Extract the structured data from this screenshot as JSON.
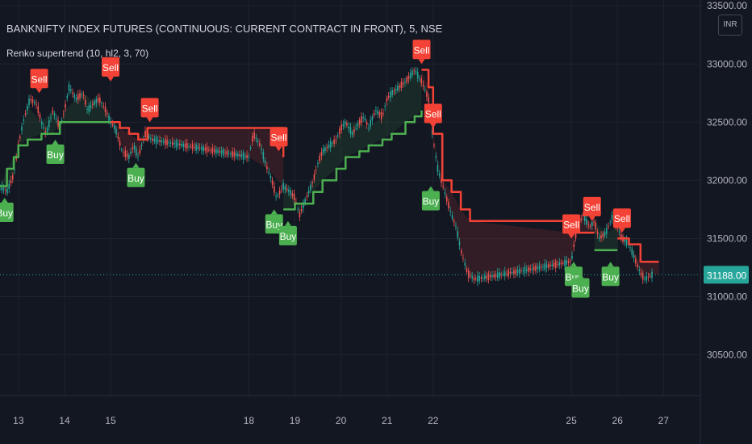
{
  "header": {
    "title": "BANKNIFTY INDEX FUTURES (CONTINUOUS: CURRENT CONTRACT IN FRONT), 5, NSE",
    "indicator": "Renko supertrend (10, hl2, 3, 70)",
    "currency": "INR"
  },
  "colors": {
    "background": "#131722",
    "grid": "#1e222d",
    "buy": "#4caf50",
    "sell": "#f44336",
    "price_line": "#26a69a",
    "candle_up": "#26a69a",
    "candle_down": "#ef5350",
    "text": "#b2b5be"
  },
  "chart_data": {
    "type": "line",
    "title": "BANKNIFTY INDEX FUTURES (CONTINUOUS: CURRENT CONTRACT IN FRONT), 5, NSE",
    "xlabel": "",
    "ylabel": "",
    "ylim": [
      30150,
      33550
    ],
    "xlim": [
      12.6,
      27.8
    ],
    "y_ticks": [
      "30500.00",
      "31000.00",
      "31500.00",
      "32000.00",
      "32500.00",
      "33000.00",
      "33500.00"
    ],
    "x_ticks": [
      "13",
      "14",
      "15",
      "18",
      "19",
      "20",
      "21",
      "22",
      "25",
      "26",
      "27"
    ],
    "x_tick_positions": [
      13,
      14,
      15,
      18,
      19,
      20,
      21,
      22,
      25,
      26,
      27
    ],
    "current_price": "31188.00",
    "grid": true,
    "price": {
      "x": [
        12.6,
        12.75,
        12.9,
        13.0,
        13.1,
        13.25,
        13.4,
        13.5,
        13.6,
        13.75,
        13.9,
        14.0,
        14.1,
        14.25,
        14.4,
        14.5,
        14.6,
        14.75,
        14.9,
        15.0,
        15.1,
        15.25,
        15.4,
        15.5,
        15.6,
        15.75,
        15.9,
        18.0,
        18.1,
        18.25,
        18.4,
        18.5,
        18.6,
        18.75,
        18.9,
        19.0,
        19.1,
        19.25,
        19.4,
        19.5,
        19.6,
        19.75,
        19.9,
        20.0,
        20.1,
        20.25,
        20.4,
        20.5,
        20.6,
        20.75,
        20.9,
        21.0,
        21.1,
        21.25,
        21.4,
        21.5,
        21.6,
        21.75,
        21.9,
        22.0,
        22.1,
        22.25,
        22.4,
        22.5,
        22.6,
        22.75,
        22.9,
        25.0,
        25.1,
        25.25,
        25.4,
        25.5,
        25.6,
        25.75,
        25.9,
        26.0,
        26.1,
        26.25,
        26.4,
        26.5,
        26.6,
        26.75
      ],
      "y": [
        31950,
        31900,
        32050,
        32300,
        32500,
        32700,
        32650,
        32500,
        32400,
        32600,
        32450,
        32600,
        32800,
        32700,
        32750,
        32600,
        32650,
        32700,
        32600,
        32500,
        32450,
        32250,
        32200,
        32300,
        32200,
        32400,
        32350,
        32200,
        32400,
        32300,
        32100,
        32000,
        31850,
        31950,
        31900,
        31850,
        31700,
        31850,
        32000,
        32150,
        32250,
        32300,
        32350,
        32450,
        32500,
        32400,
        32500,
        32550,
        32450,
        32600,
        32550,
        32700,
        32750,
        32800,
        32850,
        32900,
        32950,
        32850,
        32700,
        32350,
        32100,
        31900,
        31700,
        31600,
        31400,
        31200,
        31150,
        31300,
        31550,
        31700,
        31600,
        31650,
        31500,
        31550,
        31700,
        31600,
        31500,
        31450,
        31300,
        31200,
        31150,
        31188
      ]
    },
    "series": [
      {
        "name": "",
        "color": "#4caf50",
        "x": [
          12.6,
          12.75,
          12.9,
          13.0,
          13.2,
          13.5,
          13.75,
          13.9,
          14.0,
          14.4,
          14.9,
          15.0
        ],
        "y": [
          31950,
          32100,
          32200,
          32300,
          32350,
          32400,
          32400,
          32500,
          32500,
          32500,
          32500,
          32500
        ]
      },
      {
        "name": "",
        "color": "#f44336",
        "x": [
          15.0,
          15.2,
          15.4,
          15.6,
          15.8,
          18.0,
          18.4,
          18.75
        ],
        "y": [
          32500,
          32450,
          32400,
          32350,
          32450,
          32450,
          32450,
          32200
        ]
      },
      {
        "name": "",
        "color": "#4caf50",
        "x": [
          18.75,
          18.9,
          19.0,
          19.1,
          19.4,
          19.6,
          19.9,
          20.1,
          20.4,
          20.6,
          20.9,
          21.1,
          21.4,
          21.6,
          21.75
        ],
        "y": [
          31750,
          31750,
          31800,
          31800,
          31900,
          32000,
          32100,
          32200,
          32250,
          32300,
          32350,
          32400,
          32500,
          32550,
          32600
        ]
      },
      {
        "name": "",
        "color": "#f44336",
        "x": [
          21.75,
          21.9,
          22.0,
          22.2,
          22.4,
          22.6,
          22.8,
          25.0,
          25.2,
          25.5
        ],
        "y": [
          32950,
          32800,
          32400,
          32000,
          31900,
          31750,
          31650,
          31550,
          31550,
          31550
        ]
      },
      {
        "name": "",
        "color": "#4caf50",
        "x": [
          25.5,
          25.75,
          26.0
        ],
        "y": [
          31400,
          31400,
          31400
        ]
      },
      {
        "name": "",
        "color": "#f44336",
        "x": [
          26.0,
          26.25,
          26.5,
          26.9
        ],
        "y": [
          31500,
          31450,
          31300,
          31300
        ]
      }
    ],
    "annotations": [
      {
        "label": "Buy",
        "kind": "buy",
        "x": 12.7,
        "y": 31850
      },
      {
        "label": "Sell",
        "kind": "sell",
        "x": 13.45,
        "y": 32750
      },
      {
        "label": "Buy",
        "kind": "buy",
        "x": 13.8,
        "y": 32350
      },
      {
        "label": "Sell",
        "kind": "sell",
        "x": 15.0,
        "y": 32850
      },
      {
        "label": "Buy",
        "kind": "buy",
        "x": 15.55,
        "y": 32150
      },
      {
        "label": "Sell",
        "kind": "sell",
        "x": 15.85,
        "y": 32500
      },
      {
        "label": "Sell",
        "kind": "sell",
        "x": 18.65,
        "y": 32250
      },
      {
        "label": "Buy",
        "kind": "buy",
        "x": 18.55,
        "y": 31750
      },
      {
        "label": "Buy",
        "kind": "buy",
        "x": 18.85,
        "y": 31650
      },
      {
        "label": "Sell",
        "kind": "sell",
        "x": 21.75,
        "y": 33000
      },
      {
        "label": "Sell",
        "kind": "sell",
        "x": 22.0,
        "y": 32450
      },
      {
        "label": "Buy",
        "kind": "buy",
        "x": 21.95,
        "y": 31950
      },
      {
        "label": "Sell",
        "kind": "sell",
        "x": 25.0,
        "y": 31500
      },
      {
        "label": "Sell",
        "kind": "sell",
        "x": 25.45,
        "y": 31650
      },
      {
        "label": "Sell",
        "kind": "sell",
        "x": 26.1,
        "y": 31550
      },
      {
        "label": "Buy",
        "kind": "buy",
        "x": 25.05,
        "y": 31300
      },
      {
        "label": "Buy",
        "kind": "buy",
        "x": 25.2,
        "y": 31200
      },
      {
        "label": "Buy",
        "kind": "buy",
        "x": 25.85,
        "y": 31300
      }
    ]
  }
}
